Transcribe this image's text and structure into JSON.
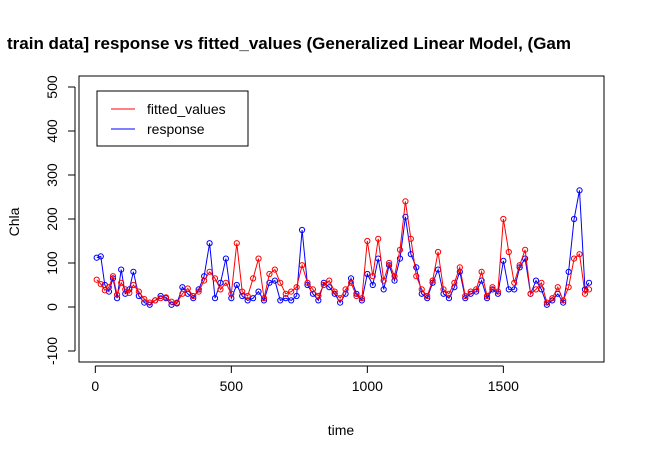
{
  "chart_data": {
    "type": "line",
    "title": "train data] response vs fitted_values (Generalized Linear Model, (Gam",
    "xlabel": "time",
    "ylabel": "Chla",
    "xlim": [
      -60,
      1870
    ],
    "ylim": [
      -125,
      525
    ],
    "xticks": [
      0,
      500,
      1000,
      1500
    ],
    "yticks": [
      -100,
      0,
      100,
      200,
      300,
      400,
      500
    ],
    "grid": false,
    "legend_position": "top-left",
    "series": [
      {
        "name": "fitted_values",
        "color": "#ff0000",
        "x": [
          5,
          20,
          35,
          50,
          65,
          80,
          95,
          110,
          125,
          140,
          160,
          180,
          200,
          220,
          240,
          260,
          280,
          300,
          320,
          340,
          360,
          380,
          400,
          420,
          440,
          460,
          480,
          500,
          520,
          540,
          560,
          580,
          600,
          620,
          640,
          660,
          680,
          700,
          720,
          740,
          760,
          780,
          800,
          820,
          840,
          860,
          880,
          900,
          920,
          940,
          960,
          980,
          1000,
          1020,
          1040,
          1060,
          1080,
          1100,
          1120,
          1140,
          1160,
          1180,
          1200,
          1220,
          1240,
          1260,
          1280,
          1300,
          1320,
          1340,
          1360,
          1380,
          1400,
          1420,
          1440,
          1460,
          1480,
          1500,
          1520,
          1540,
          1560,
          1580,
          1600,
          1620,
          1640,
          1660,
          1680,
          1700,
          1720,
          1740,
          1760,
          1780,
          1800,
          1815
        ],
        "y": [
          62,
          52,
          38,
          45,
          70,
          28,
          55,
          40,
          32,
          50,
          35,
          18,
          10,
          15,
          20,
          22,
          12,
          10,
          30,
          42,
          25,
          35,
          60,
          80,
          65,
          40,
          55,
          30,
          145,
          35,
          25,
          65,
          110,
          20,
          75,
          85,
          55,
          30,
          35,
          45,
          95,
          55,
          40,
          25,
          50,
          60,
          35,
          20,
          40,
          55,
          25,
          20,
          150,
          70,
          155,
          60,
          100,
          70,
          130,
          240,
          155,
          70,
          40,
          25,
          60,
          125,
          40,
          30,
          55,
          90,
          25,
          35,
          40,
          80,
          25,
          45,
          35,
          200,
          125,
          55,
          95,
          130,
          30,
          40,
          55,
          10,
          20,
          45,
          15,
          45,
          110,
          120,
          30,
          40
        ]
      },
      {
        "name": "response",
        "color": "#0000ff",
        "x": [
          5,
          20,
          35,
          50,
          65,
          80,
          95,
          110,
          125,
          140,
          160,
          180,
          200,
          220,
          240,
          260,
          280,
          300,
          320,
          340,
          360,
          380,
          400,
          420,
          440,
          460,
          480,
          500,
          520,
          540,
          560,
          580,
          600,
          620,
          640,
          660,
          680,
          700,
          720,
          740,
          760,
          780,
          800,
          820,
          840,
          860,
          880,
          900,
          920,
          940,
          960,
          980,
          1000,
          1020,
          1040,
          1060,
          1080,
          1100,
          1120,
          1140,
          1160,
          1180,
          1200,
          1220,
          1240,
          1260,
          1280,
          1300,
          1320,
          1340,
          1360,
          1380,
          1400,
          1420,
          1440,
          1460,
          1480,
          1500,
          1520,
          1540,
          1560,
          1580,
          1600,
          1620,
          1640,
          1660,
          1680,
          1700,
          1720,
          1740,
          1760,
          1780,
          1800,
          1815
        ],
        "y": [
          112,
          115,
          50,
          35,
          65,
          20,
          85,
          30,
          40,
          80,
          25,
          10,
          5,
          15,
          25,
          20,
          5,
          8,
          45,
          30,
          20,
          40,
          70,
          145,
          20,
          55,
          110,
          20,
          50,
          25,
          15,
          20,
          35,
          15,
          55,
          60,
          15,
          20,
          15,
          25,
          175,
          50,
          30,
          15,
          55,
          45,
          30,
          10,
          30,
          65,
          30,
          15,
          75,
          50,
          110,
          40,
          95,
          60,
          110,
          205,
          120,
          90,
          30,
          20,
          55,
          85,
          30,
          20,
          45,
          80,
          20,
          30,
          35,
          60,
          20,
          40,
          30,
          105,
          40,
          40,
          90,
          110,
          30,
          60,
          40,
          5,
          15,
          30,
          10,
          80,
          200,
          265,
          40,
          55
        ]
      }
    ]
  }
}
